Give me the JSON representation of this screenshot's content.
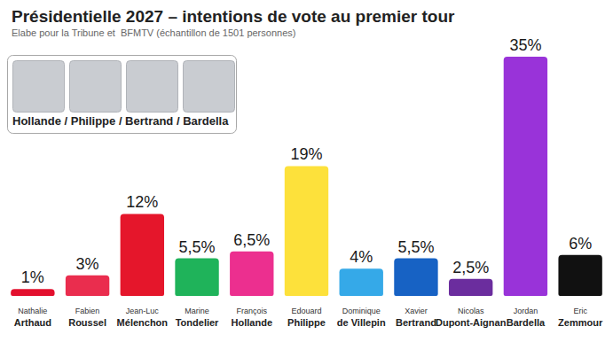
{
  "chart_data": {
    "type": "bar",
    "title": "Présidentielle 2027 – intentions de vote au premier tour",
    "subtitle": "Elabe pour la Tribune et  BFMTV (échantillon de 1501 personnes)",
    "inset_caption": "Hollande / Philippe / Bertrand / Bardella",
    "categories": [
      "Nathalie Arthaud",
      "Fabien Roussel",
      "Jean-Luc Mélenchon",
      "Marine Tondelier",
      "François Hollande",
      "Edouard Philippe",
      "Dominique de Villepin",
      "Xavier Bertrand",
      "Nicolas Dupont-Aignan",
      "Jordan Bardella",
      "Eric Zemmour"
    ],
    "values": [
      1,
      3,
      12,
      5.5,
      6.5,
      19,
      4,
      5.5,
      2.5,
      35,
      6
    ],
    "value_labels": [
      "1%",
      "3%",
      "12%",
      "5,5%",
      "6,5%",
      "19%",
      "4%",
      "5,5%",
      "2,5%",
      "35%",
      "6%"
    ],
    "colors": [
      "#e3102e",
      "#ea2d4e",
      "#e5162b",
      "#1fb35a",
      "#ec2f8f",
      "#fde13b",
      "#35a9e8",
      "#1762c4",
      "#6b2d9e",
      "#9933d9",
      "#111111"
    ],
    "ylim": [
      0,
      35
    ],
    "grid": false,
    "data_labels": true,
    "tick_labels": false
  }
}
